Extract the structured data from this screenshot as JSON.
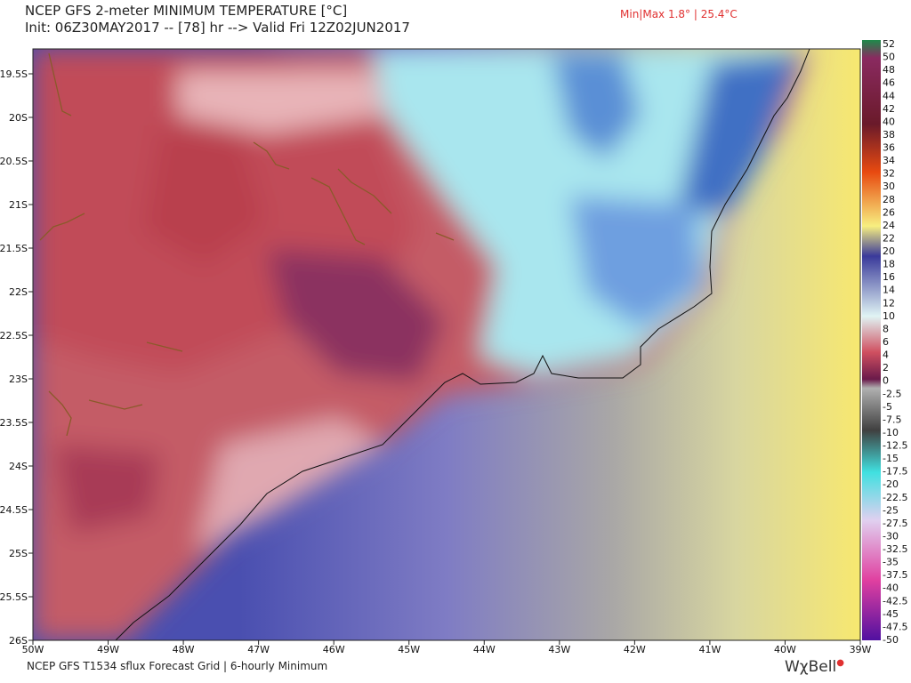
{
  "header": {
    "title": "NCEP GFS 2-meter MINIMUM TEMPERATURE [°C]",
    "init": "Init: 06Z30MAY2017 -- [78] hr --> Valid Fri 12Z02JUN2017",
    "minmax": "Min|Max 1.8° | 25.4°C"
  },
  "map": {
    "lat_labels": [
      "19.5S",
      "20S",
      "20.5S",
      "21S",
      "21.5S",
      "22S",
      "22.5S",
      "23S",
      "23.5S",
      "24S",
      "24.5S",
      "25S",
      "25.5S",
      "26S"
    ],
    "lon_labels": [
      "50W",
      "49W",
      "48W",
      "47W",
      "46W",
      "45W",
      "44W",
      "43W",
      "42W",
      "41W",
      "40W",
      "39W"
    ]
  },
  "colorbar": {
    "labels": [
      "52",
      "50",
      "48",
      "46",
      "44",
      "42",
      "40",
      "38",
      "36",
      "34",
      "32",
      "30",
      "28",
      "26",
      "24",
      "22",
      "20",
      "18",
      "16",
      "14",
      "12",
      "10",
      "8",
      "6",
      "4",
      "2",
      "0",
      "-2.5",
      "-5",
      "-7.5",
      "-10",
      "-12.5",
      "-15",
      "-17.5",
      "-20",
      "-22.5",
      "-25",
      "-27.5",
      "-30",
      "-32.5",
      "-35",
      "-37.5",
      "-40",
      "-42.5",
      "-45",
      "-47.5",
      "-50"
    ]
  },
  "footer": {
    "text": "NCEP GFS T1534 sflux Forecast Grid | 6-hourly Minimum",
    "brand": "WχBell"
  }
}
